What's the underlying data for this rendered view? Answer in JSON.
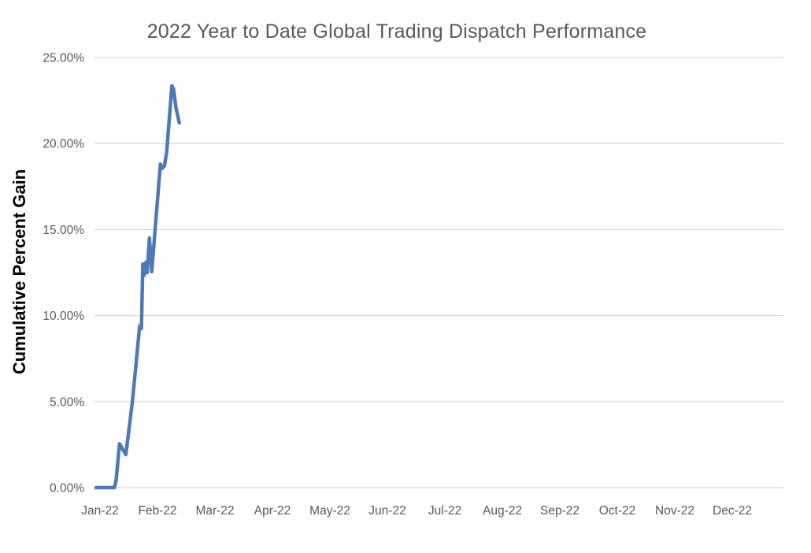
{
  "page": {
    "background": "#ffffff"
  },
  "chart": {
    "title": "2022 Year to Date Global Trading Dispatch Performance",
    "y_axis_title": "Cumulative Percent Gain"
  },
  "colors": {
    "line": "#4E79B7",
    "grid": "#D9D9D9",
    "tick_text": "#595959",
    "title_text": "#595959",
    "axis_title_text": "#000000"
  },
  "chart_data": {
    "type": "line",
    "title": "2022 Year to Date Global Trading Dispatch Performance",
    "xlabel": "",
    "ylabel": "Cumulative Percent Gain",
    "grid": "horizontal",
    "legend": "none",
    "ylim": [
      0,
      25
    ],
    "y_ticks": [
      {
        "value": 0,
        "label": "0.00%"
      },
      {
        "value": 5,
        "label": "5.00%"
      },
      {
        "value": 10,
        "label": "10.00%"
      },
      {
        "value": 15,
        "label": "15.00%"
      },
      {
        "value": 20,
        "label": "20.00%"
      },
      {
        "value": 25,
        "label": "25.00%"
      }
    ],
    "x_tick_labels": [
      "Jan-22",
      "Feb-22",
      "Mar-22",
      "Apr-22",
      "May-22",
      "Jun-22",
      "Jul-22",
      "Aug-22",
      "Sep-22",
      "Oct-22",
      "Nov-22",
      "Dec-22"
    ],
    "x_unit": "months after Jan-22 tick",
    "series": [
      {
        "name": "Cumulative Percent Gain",
        "color": "#4E79B7",
        "points": [
          [
            -0.07,
            0.0
          ],
          [
            0.25,
            0.0
          ],
          [
            0.28,
            0.4
          ],
          [
            0.34,
            2.55
          ],
          [
            0.45,
            1.92
          ],
          [
            0.56,
            4.9
          ],
          [
            0.63,
            7.3
          ],
          [
            0.69,
            9.4
          ],
          [
            0.72,
            9.25
          ],
          [
            0.745,
            13.0
          ],
          [
            0.77,
            12.35
          ],
          [
            0.8,
            13.1
          ],
          [
            0.82,
            12.5
          ],
          [
            0.86,
            14.5
          ],
          [
            0.9,
            12.55
          ],
          [
            1.05,
            18.8
          ],
          [
            1.08,
            18.55
          ],
          [
            1.12,
            18.7
          ],
          [
            1.16,
            19.5
          ],
          [
            1.25,
            23.35
          ],
          [
            1.28,
            23.15
          ],
          [
            1.32,
            22.1
          ],
          [
            1.38,
            21.2
          ]
        ]
      }
    ]
  }
}
